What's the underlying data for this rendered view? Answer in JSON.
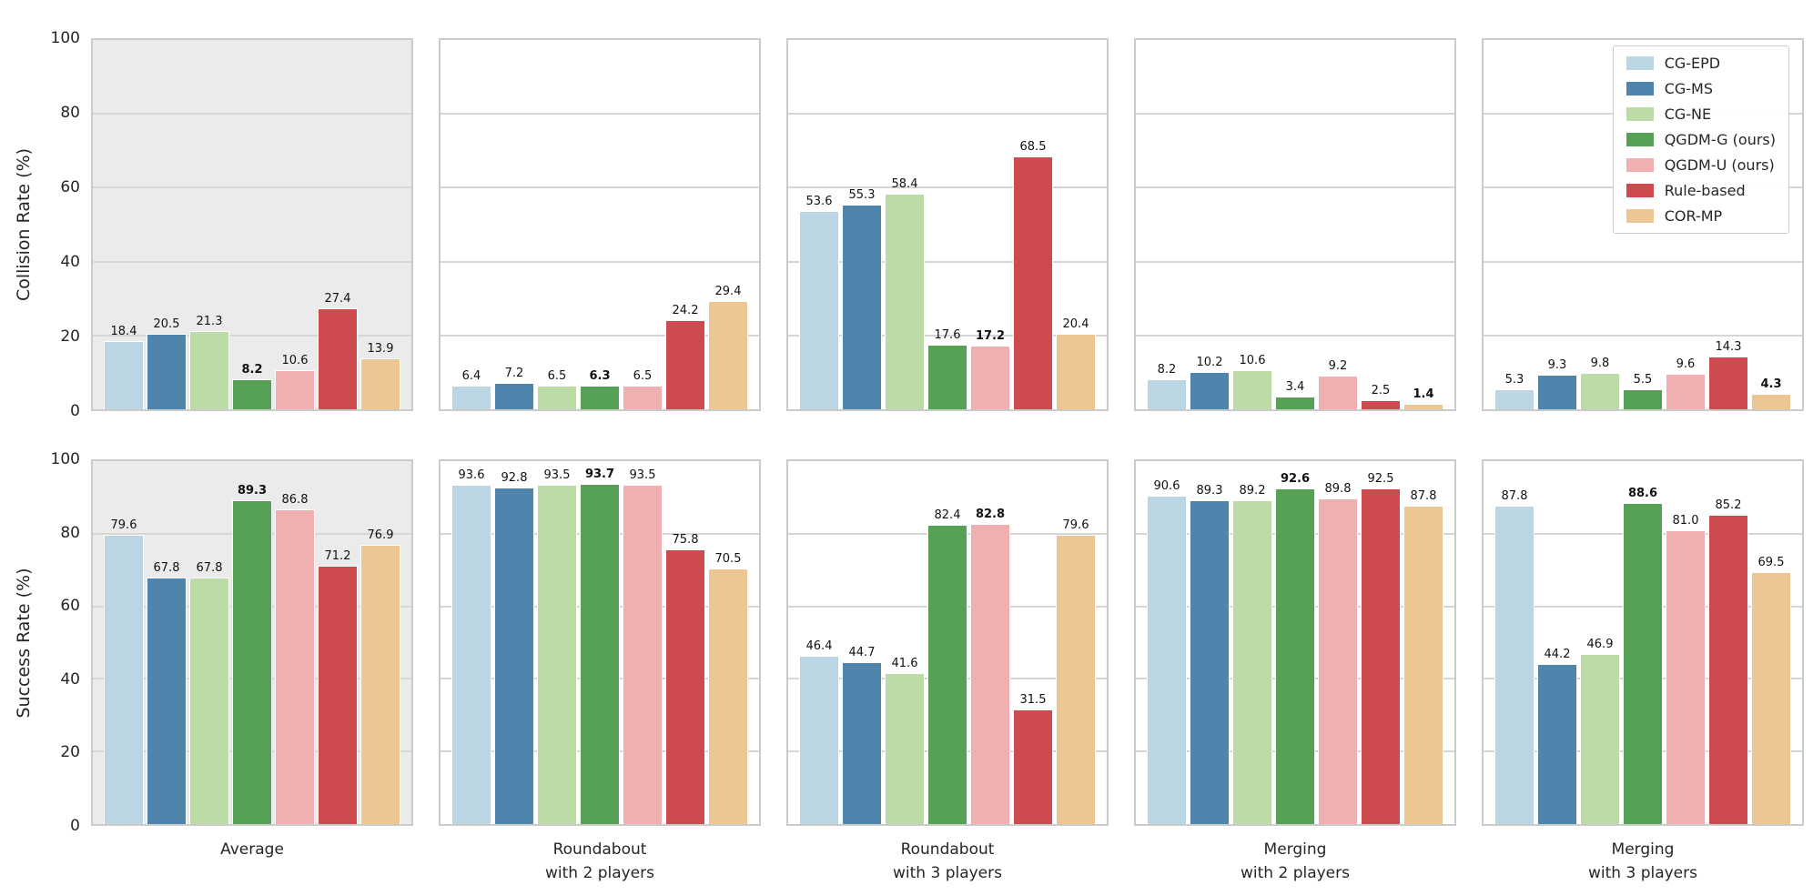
{
  "legend": {
    "entries": [
      "CG-EPD",
      "CG-MS",
      "CG-NE",
      "QGDM-G (ours)",
      "QGDM-U (ours)",
      "Rule-based",
      "COR-MP"
    ]
  },
  "palette": {
    "CG-EPD": "#bcd5e3",
    "CG-MS": "#4f85ad",
    "CG-NE": "#bcdba6",
    "QGDM-G (ours)": "#57a157",
    "QGDM-U (ours)": "#f0b0b2",
    "Rule-based": "#cd4b4e",
    "COR-MP": "#ecc793"
  },
  "chart_data": [
    {
      "type": "bar",
      "ylabel": "Collision Rate (%)",
      "ylim": [
        0,
        100
      ],
      "yticks": [
        0,
        20,
        40,
        60,
        80,
        100
      ],
      "grid": "horizontal",
      "legend_position": "upper right of last panel",
      "panel_backgrounds": [
        "#ebebeb",
        "#ffffff",
        "#ffffff",
        "#ffffff",
        "#ffffff"
      ],
      "categories": [
        [
          "Average"
        ],
        [
          "Roundabout",
          "with 2 players"
        ],
        [
          "Roundabout",
          "with 3 players"
        ],
        [
          "Merging",
          "with 2 players"
        ],
        [
          "Merging",
          "with 3 players"
        ]
      ],
      "series": [
        {
          "name": "CG-EPD",
          "color": "#bcd5e3",
          "values": [
            18.4,
            6.4,
            53.6,
            8.2,
            5.3
          ]
        },
        {
          "name": "CG-MS",
          "color": "#4f85ad",
          "values": [
            20.5,
            7.2,
            55.3,
            10.2,
            9.3
          ]
        },
        {
          "name": "CG-NE",
          "color": "#bcdba6",
          "values": [
            21.3,
            6.5,
            58.4,
            10.6,
            9.8
          ]
        },
        {
          "name": "QGDM-G (ours)",
          "color": "#57a157",
          "values": [
            8.2,
            6.3,
            17.6,
            3.4,
            5.5
          ]
        },
        {
          "name": "QGDM-U (ours)",
          "color": "#f0b0b2",
          "values": [
            10.6,
            6.5,
            17.2,
            9.2,
            9.6
          ]
        },
        {
          "name": "Rule-based",
          "color": "#cd4b4e",
          "values": [
            27.4,
            24.2,
            68.5,
            2.5,
            14.3
          ]
        },
        {
          "name": "COR-MP",
          "color": "#ecc793",
          "values": [
            13.9,
            29.4,
            20.4,
            1.4,
            4.3
          ]
        }
      ],
      "bold_series_index_per_panel": [
        3,
        3,
        4,
        6,
        6
      ]
    },
    {
      "type": "bar",
      "ylabel": "Success Rate (%)",
      "ylim": [
        0,
        100
      ],
      "yticks": [
        0,
        20,
        40,
        60,
        80,
        100
      ],
      "grid": "horizontal",
      "panel_backgrounds": [
        "#ebebeb",
        "#ffffff",
        "#ffffff",
        "#ffffff",
        "#ffffff"
      ],
      "categories": [
        [
          "Average"
        ],
        [
          "Roundabout",
          "with 2 players"
        ],
        [
          "Roundabout",
          "with 3 players"
        ],
        [
          "Merging",
          "with 2 players"
        ],
        [
          "Merging",
          "with 3 players"
        ]
      ],
      "series": [
        {
          "name": "CG-EPD",
          "color": "#bcd5e3",
          "values": [
            79.6,
            93.6,
            46.4,
            90.6,
            87.8
          ]
        },
        {
          "name": "CG-MS",
          "color": "#4f85ad",
          "values": [
            67.8,
            92.8,
            44.7,
            89.3,
            44.2
          ]
        },
        {
          "name": "CG-NE",
          "color": "#bcdba6",
          "values": [
            67.8,
            93.5,
            41.6,
            89.2,
            46.9
          ]
        },
        {
          "name": "QGDM-G (ours)",
          "color": "#57a157",
          "values": [
            89.3,
            93.7,
            82.4,
            92.6,
            88.6
          ]
        },
        {
          "name": "QGDM-U (ours)",
          "color": "#f0b0b2",
          "values": [
            86.8,
            93.5,
            82.8,
            89.8,
            81.0
          ]
        },
        {
          "name": "Rule-based",
          "color": "#cd4b4e",
          "values": [
            71.2,
            75.8,
            31.5,
            92.5,
            85.2
          ]
        },
        {
          "name": "COR-MP",
          "color": "#ecc793",
          "values": [
            76.9,
            70.5,
            79.6,
            87.8,
            69.5
          ]
        }
      ],
      "bold_series_index_per_panel": [
        3,
        3,
        4,
        3,
        3
      ]
    }
  ]
}
